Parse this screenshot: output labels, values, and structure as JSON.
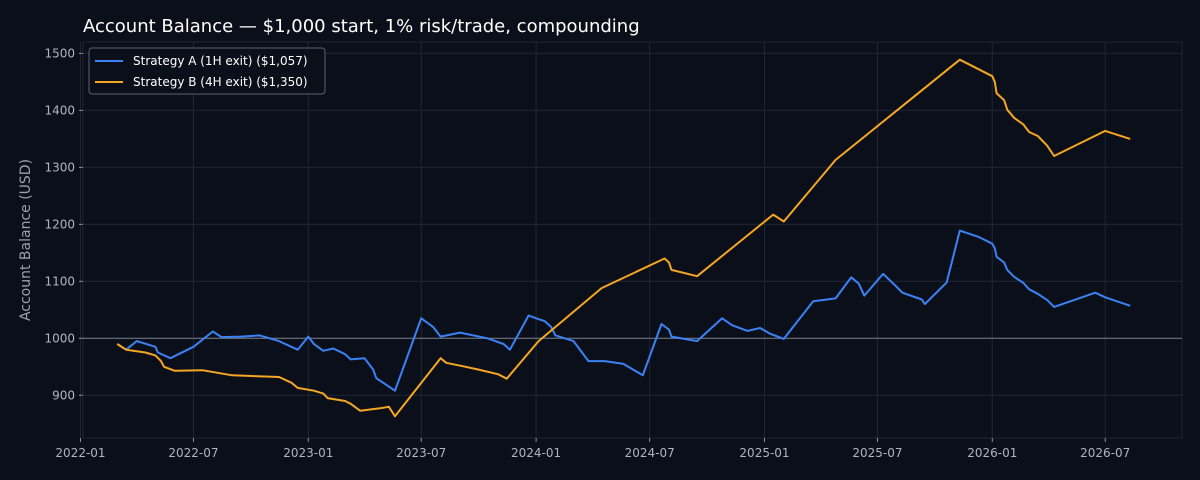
{
  "chart_data": {
    "type": "line",
    "title": "Account Balance — $1,000 start, 1% risk/trade, compounding",
    "ylabel": "Account Balance (USD)",
    "xlabel": "",
    "ylim": [
      825,
      1520
    ],
    "xlim": [
      "2022-01-05",
      "2026-11-01"
    ],
    "yticks": [
      900,
      1000,
      1100,
      1200,
      1300,
      1400,
      1500
    ],
    "xticks": [
      "2022-01",
      "2022-07",
      "2023-01",
      "2023-07",
      "2024-01",
      "2024-07",
      "2025-01",
      "2025-07",
      "2026-01",
      "2026-07"
    ],
    "reference_line": 1000,
    "grid": true,
    "legend_position": "top-left",
    "colors": {
      "background": "#0b0f1a",
      "grid": "#1f2633",
      "reference": "#6b7280"
    },
    "series": [
      {
        "name": "Strategy A (1H exit) ($1,057)",
        "color": "#3b82f6",
        "points": [
          [
            "2022-03-01",
            990
          ],
          [
            "2022-03-15",
            980
          ],
          [
            "2022-04-01",
            995
          ],
          [
            "2022-05-01",
            985
          ],
          [
            "2022-05-05",
            975
          ],
          [
            "2022-05-25",
            965
          ],
          [
            "2022-07-01",
            985
          ],
          [
            "2022-08-01",
            1012
          ],
          [
            "2022-08-15",
            1002
          ],
          [
            "2022-09-15",
            1003
          ],
          [
            "2022-10-15",
            1005
          ],
          [
            "2022-11-15",
            995
          ],
          [
            "2022-12-15",
            980
          ],
          [
            "2023-01-01",
            1003
          ],
          [
            "2023-01-10",
            990
          ],
          [
            "2023-01-25",
            978
          ],
          [
            "2023-02-10",
            982
          ],
          [
            "2023-03-01",
            972
          ],
          [
            "2023-03-10",
            963
          ],
          [
            "2023-04-01",
            965
          ],
          [
            "2023-04-15",
            945
          ],
          [
            "2023-04-20",
            930
          ],
          [
            "2023-05-20",
            908
          ],
          [
            "2023-07-01",
            1035
          ],
          [
            "2023-07-20",
            1020
          ],
          [
            "2023-08-01",
            1003
          ],
          [
            "2023-09-01",
            1010
          ],
          [
            "2023-10-15",
            1000
          ],
          [
            "2023-11-10",
            990
          ],
          [
            "2023-11-20",
            980
          ],
          [
            "2023-12-20",
            1040
          ],
          [
            "2024-01-01",
            1035
          ],
          [
            "2024-01-15",
            1030
          ],
          [
            "2024-01-25",
            1020
          ],
          [
            "2024-02-01",
            1005
          ],
          [
            "2024-03-01",
            995
          ],
          [
            "2024-03-25",
            960
          ],
          [
            "2024-04-20",
            960
          ],
          [
            "2024-05-20",
            955
          ],
          [
            "2024-06-20",
            935
          ],
          [
            "2024-07-20",
            1025
          ],
          [
            "2024-08-01",
            1015
          ],
          [
            "2024-08-05",
            1003
          ],
          [
            "2024-09-15",
            995
          ],
          [
            "2024-10-25",
            1035
          ],
          [
            "2024-11-10",
            1023
          ],
          [
            "2024-12-05",
            1013
          ],
          [
            "2024-12-25",
            1018
          ],
          [
            "2025-01-10",
            1008
          ],
          [
            "2025-02-01",
            999
          ],
          [
            "2025-03-20",
            1065
          ],
          [
            "2025-04-25",
            1070
          ],
          [
            "2025-05-20",
            1107
          ],
          [
            "2025-06-01",
            1096
          ],
          [
            "2025-06-10",
            1075
          ],
          [
            "2025-07-10",
            1113
          ],
          [
            "2025-08-01",
            1090
          ],
          [
            "2025-08-10",
            1080
          ],
          [
            "2025-09-10",
            1068
          ],
          [
            "2025-09-15",
            1060
          ],
          [
            "2025-10-20",
            1098
          ],
          [
            "2025-11-10",
            1189
          ],
          [
            "2025-12-10",
            1178
          ],
          [
            "2026-01-01",
            1166
          ],
          [
            "2026-01-05",
            1158
          ],
          [
            "2026-01-08",
            1143
          ],
          [
            "2026-01-20",
            1133
          ],
          [
            "2026-01-25",
            1120
          ],
          [
            "2026-02-05",
            1108
          ],
          [
            "2026-02-20",
            1097
          ],
          [
            "2026-03-01",
            1086
          ],
          [
            "2026-03-15",
            1078
          ],
          [
            "2026-03-30",
            1067
          ],
          [
            "2026-04-10",
            1055
          ],
          [
            "2026-06-15",
            1080
          ],
          [
            "2026-07-01",
            1072
          ],
          [
            "2026-08-10",
            1057
          ]
        ]
      },
      {
        "name": "Strategy B (4H exit) ($1,350)",
        "color": "#f5a623",
        "points": [
          [
            "2022-03-01",
            990
          ],
          [
            "2022-03-15",
            980
          ],
          [
            "2022-04-15",
            975
          ],
          [
            "2022-05-01",
            970
          ],
          [
            "2022-05-10",
            960
          ],
          [
            "2022-05-15",
            950
          ],
          [
            "2022-06-01",
            943
          ],
          [
            "2022-07-15",
            944
          ],
          [
            "2022-09-01",
            935
          ],
          [
            "2022-11-15",
            932
          ],
          [
            "2022-12-05",
            922
          ],
          [
            "2022-12-15",
            913
          ],
          [
            "2023-01-10",
            908
          ],
          [
            "2023-01-25",
            903
          ],
          [
            "2023-02-01",
            895
          ],
          [
            "2023-03-01",
            890
          ],
          [
            "2023-03-10",
            885
          ],
          [
            "2023-03-25",
            873
          ],
          [
            "2023-05-01",
            878
          ],
          [
            "2023-05-10",
            880
          ],
          [
            "2023-05-20",
            863
          ],
          [
            "2023-08-01",
            965
          ],
          [
            "2023-08-10",
            957
          ],
          [
            "2023-09-10",
            950
          ],
          [
            "2023-10-01",
            945
          ],
          [
            "2023-11-01",
            937
          ],
          [
            "2023-11-15",
            929
          ],
          [
            "2024-01-05",
            995
          ],
          [
            "2024-04-15",
            1088
          ],
          [
            "2024-07-25",
            1140
          ],
          [
            "2024-08-01",
            1133
          ],
          [
            "2024-08-05",
            1120
          ],
          [
            "2024-09-15",
            1109
          ],
          [
            "2025-01-15",
            1217
          ],
          [
            "2025-02-01",
            1205
          ],
          [
            "2025-04-25",
            1313
          ],
          [
            "2025-11-10",
            1489
          ],
          [
            "2026-01-01",
            1460
          ],
          [
            "2026-01-05",
            1450
          ],
          [
            "2026-01-08",
            1430
          ],
          [
            "2026-01-20",
            1418
          ],
          [
            "2026-01-25",
            1401
          ],
          [
            "2026-02-05",
            1387
          ],
          [
            "2026-02-20",
            1375
          ],
          [
            "2026-03-01",
            1362
          ],
          [
            "2026-03-15",
            1355
          ],
          [
            "2026-03-30",
            1338
          ],
          [
            "2026-04-10",
            1320
          ],
          [
            "2026-07-01",
            1364
          ],
          [
            "2026-08-10",
            1350
          ]
        ]
      }
    ]
  }
}
